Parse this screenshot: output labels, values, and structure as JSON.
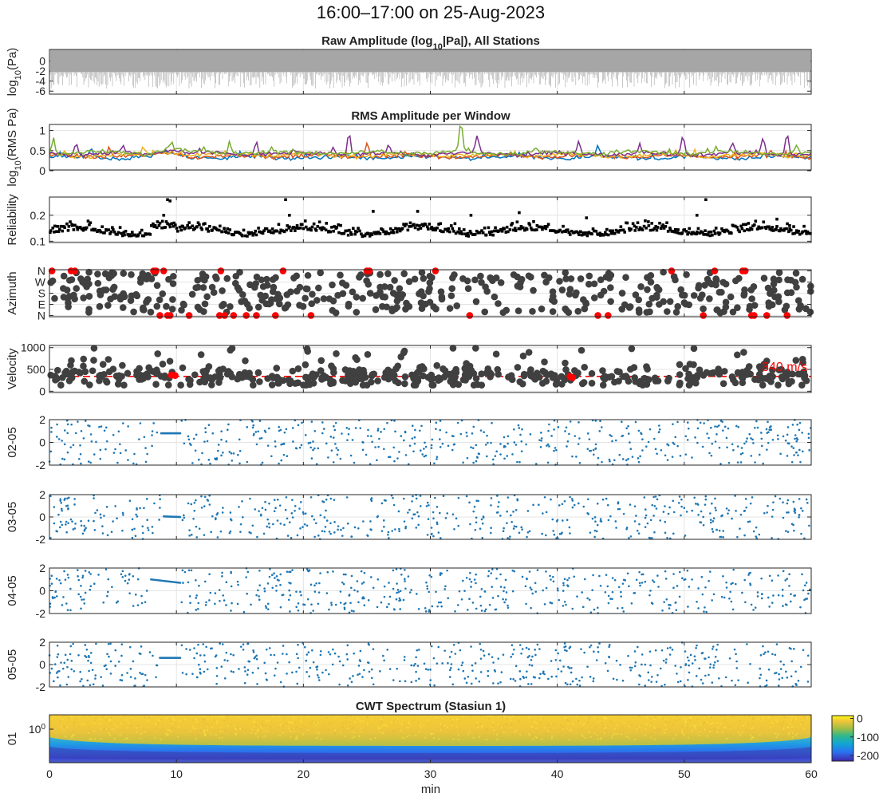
{
  "figure": {
    "title": "16:00–17:00 on 25-Aug-2023",
    "xlabel": "min"
  },
  "x_axis": {
    "range": [
      0,
      60
    ],
    "ticks": [
      "0",
      "10",
      "20",
      "30",
      "40",
      "50",
      "60"
    ]
  },
  "colorbar": {
    "ticks": [
      "0",
      "-100",
      "-200"
    ],
    "range": [
      -230,
      15
    ]
  },
  "colors": {
    "rms_series": [
      "#0072bd",
      "#d95319",
      "#edb120",
      "#7e2f8e",
      "#77ac30"
    ],
    "dots": "#404040",
    "highlight": "#ff0000",
    "phase": "#1f77b4",
    "raw": "#a6a6a6"
  },
  "chart_data": [
    {
      "id": "raw",
      "type": "line",
      "title": "Raw Amplitude (log10|Pa|), All Stations",
      "title_parts": [
        "Raw  Amplitude  (log",
        "10",
        "|Pa|),  All  Stations"
      ],
      "ylabel_parts": [
        "log",
        "10",
        "(Pa)"
      ],
      "ylim": [
        -6.6,
        2.3
      ],
      "yticks": [
        "0",
        "-2",
        "-4",
        "-6"
      ],
      "ytick_values": [
        0,
        -2,
        -4,
        -6
      ],
      "band": [
        -5.5,
        2.2
      ]
    },
    {
      "id": "rms",
      "type": "line",
      "title": "RMS Amplitude per Window",
      "ylabel_parts": [
        "log",
        "10",
        "(RMS  Pa)"
      ],
      "ylim": [
        0.02,
        1.15
      ],
      "yticks": [
        "1",
        "0.5",
        "0"
      ],
      "ytick_values": [
        1,
        0.5,
        0
      ],
      "baseline": [
        0.33,
        0.36,
        0.39,
        0.42,
        0.45
      ],
      "peaks": [
        {
          "s": 4,
          "x": 0.3,
          "v": 0.82
        },
        {
          "s": 3,
          "x": 2.1,
          "v": 0.72
        },
        {
          "s": 0,
          "x": 3.3,
          "v": 0.55
        },
        {
          "s": 1,
          "x": 4.7,
          "v": 0.62
        },
        {
          "s": 3,
          "x": 5.8,
          "v": 0.62
        },
        {
          "s": 2,
          "x": 7.4,
          "v": 0.58
        },
        {
          "s": 4,
          "x": 9.6,
          "v": 0.62
        },
        {
          "s": 4,
          "x": 14.2,
          "v": 0.75
        },
        {
          "s": 3,
          "x": 16.3,
          "v": 0.72
        },
        {
          "s": 3,
          "x": 22.3,
          "v": 0.6
        },
        {
          "s": 3,
          "x": 23.6,
          "v": 0.95
        },
        {
          "s": 1,
          "x": 25.0,
          "v": 0.72
        },
        {
          "s": 3,
          "x": 26.7,
          "v": 0.62
        },
        {
          "s": 4,
          "x": 32.4,
          "v": 1.18
        },
        {
          "s": 3,
          "x": 33.7,
          "v": 0.82
        },
        {
          "s": 4,
          "x": 38.2,
          "v": 0.55
        },
        {
          "s": 3,
          "x": 41.7,
          "v": 0.75
        },
        {
          "s": 0,
          "x": 43.2,
          "v": 0.6
        },
        {
          "s": 3,
          "x": 46.5,
          "v": 0.65
        },
        {
          "s": 3,
          "x": 49.9,
          "v": 0.9
        },
        {
          "s": 3,
          "x": 53.8,
          "v": 0.68
        },
        {
          "s": 3,
          "x": 56.2,
          "v": 0.82
        },
        {
          "s": 3,
          "x": 58.1,
          "v": 0.92
        },
        {
          "s": 4,
          "x": 58.8,
          "v": 0.62
        }
      ]
    },
    {
      "id": "rel",
      "type": "scatter",
      "ylabel": "Reliability",
      "ylim": [
        0.095,
        0.27
      ],
      "yticks": [
        "0.2",
        "0.1"
      ],
      "ytick_values": [
        0.2,
        0.1
      ],
      "spikes": [
        {
          "x": 9.3,
          "v": 0.26
        },
        {
          "x": 9.5,
          "v": 0.255
        },
        {
          "x": 9.0,
          "v": 0.2
        },
        {
          "x": 18.6,
          "v": 0.26
        },
        {
          "x": 18.9,
          "v": 0.2
        },
        {
          "x": 25.5,
          "v": 0.215
        },
        {
          "x": 29.0,
          "v": 0.215
        },
        {
          "x": 33.2,
          "v": 0.2
        },
        {
          "x": 37.0,
          "v": 0.21
        },
        {
          "x": 42.3,
          "v": 0.19
        },
        {
          "x": 51.0,
          "v": 0.2
        },
        {
          "x": 51.7,
          "v": 0.26
        },
        {
          "x": 57.3,
          "v": 0.185
        },
        {
          "x": 58.3,
          "v": 0.16
        }
      ]
    },
    {
      "id": "az",
      "type": "scatter",
      "ylabel": "Azimuth",
      "ylim": [
        -10,
        370
      ],
      "yticks": [
        "N",
        "W",
        "S",
        "E",
        "N"
      ],
      "ytick_values": [
        360,
        270,
        180,
        90,
        0
      ],
      "red_top": [
        0.2,
        1.7,
        2.0,
        8.2,
        8.4,
        9.0,
        13.5,
        18.4,
        25.0,
        25.2,
        30.4,
        49.0,
        52.4,
        54.6,
        54.8
      ],
      "red_bottom": [
        8.7,
        9.3,
        9.5,
        11.0,
        13.4,
        13.8,
        14.5,
        15.5,
        16.3,
        17.8,
        20.6,
        33.1,
        43.2,
        44.0,
        51.5,
        55.3,
        55.5,
        56.5,
        58.1
      ]
    },
    {
      "id": "vel",
      "type": "scatter",
      "ylabel": "Velocity",
      "ylim": [
        -30,
        1050
      ],
      "yticks": [
        "1000",
        "500",
        "0"
      ],
      "ytick_values": [
        1000,
        500,
        0
      ],
      "reference": {
        "value": 340,
        "label": "340 m/s"
      },
      "red_points": [
        {
          "x": 9.6,
          "v": 370
        },
        {
          "x": 9.9,
          "v": 360
        },
        {
          "x": 41.0,
          "v": 340
        },
        {
          "x": 41.2,
          "v": 310
        }
      ]
    },
    {
      "id": "p0205",
      "type": "scatter",
      "ylabel": "02-05",
      "ylim": [
        -2,
        2
      ],
      "yticks": [
        "2",
        "0",
        "-2"
      ],
      "ytick_values": [
        2,
        0,
        -2
      ],
      "trend": {
        "x0": 8.8,
        "x1": 10.3,
        "v0": 0.8,
        "v1": 0.8
      }
    },
    {
      "id": "p0305",
      "type": "scatter",
      "ylabel": "03-05",
      "ylim": [
        -2,
        2
      ],
      "yticks": [
        "2",
        "0",
        "-2"
      ],
      "ytick_values": [
        2,
        0,
        -2
      ],
      "trend": {
        "x0": 9.0,
        "x1": 10.3,
        "v0": 0.05,
        "v1": 0.0
      }
    },
    {
      "id": "p0405",
      "type": "scatter",
      "ylabel": "04-05",
      "ylim": [
        -2,
        2
      ],
      "yticks": [
        "2",
        "0",
        "-2"
      ],
      "ytick_values": [
        2,
        0,
        -2
      ],
      "trend": {
        "x0": 8.0,
        "x1": 10.3,
        "v0": 1.0,
        "v1": 0.7
      }
    },
    {
      "id": "p0505",
      "type": "scatter",
      "ylabel": "05-05",
      "ylim": [
        -2,
        2
      ],
      "yticks": [
        "2",
        "0",
        "-2"
      ],
      "ytick_values": [
        2,
        0,
        -2
      ],
      "trend": {
        "x0": 8.7,
        "x1": 10.3,
        "v0": 0.6,
        "v1": 0.6
      }
    },
    {
      "id": "cwt",
      "type": "heatmap",
      "title": "CWT Spectrum (Stasiun 1)",
      "ylabel": "01",
      "ytick_label_parts": [
        "10",
        "0"
      ],
      "ytick_position": 0.3
    }
  ]
}
